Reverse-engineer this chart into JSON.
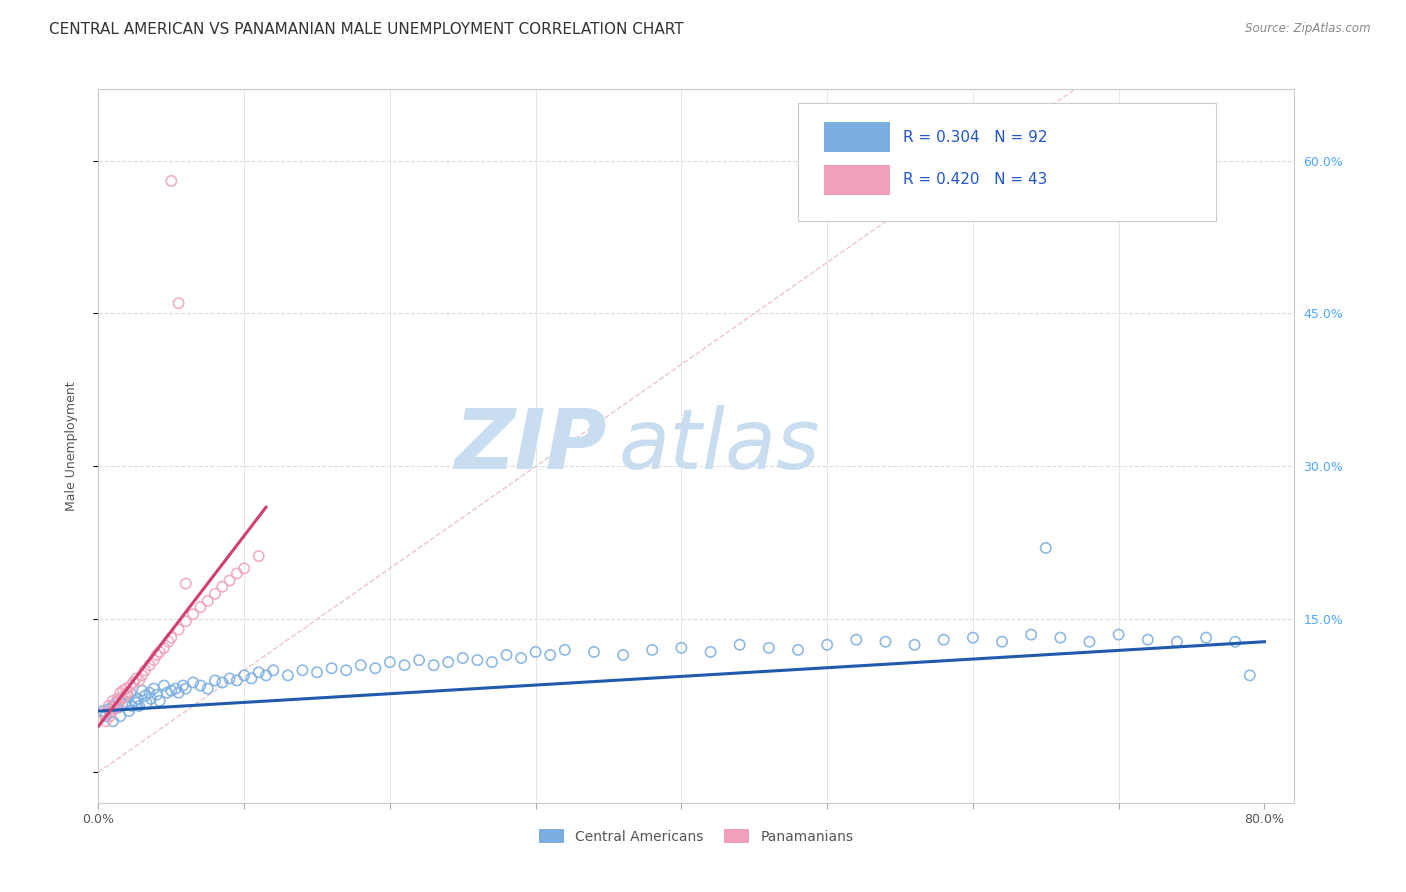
{
  "title": "CENTRAL AMERICAN VS PANAMANIAN MALE UNEMPLOYMENT CORRELATION CHART",
  "source": "Source: ZipAtlas.com",
  "ylabel": "Male Unemployment",
  "xlim": [
    0.0,
    0.82
  ],
  "ylim": [
    -0.03,
    0.67
  ],
  "xticks": [
    0.0,
    0.1,
    0.2,
    0.3,
    0.4,
    0.5,
    0.6,
    0.7,
    0.8
  ],
  "xtick_labels": [
    "0.0%",
    "",
    "",
    "",
    "",
    "",
    "",
    "",
    "80.0%"
  ],
  "ytick_right_values": [
    0.0,
    0.15,
    0.3,
    0.45,
    0.6
  ],
  "ytick_right_labels": [
    "",
    "15.0%",
    "30.0%",
    "45.0%",
    "60.0%"
  ],
  "legend_line1": "R = 0.304   N = 92",
  "legend_line2": "R = 0.420   N = 43",
  "blue_scatter_color": "#7aade0",
  "pink_scatter_color": "#f0a0b8",
  "blue_line_color": "#1f5aad",
  "pink_line_color": "#d04070",
  "diagonal_color": "#e8c0c8",
  "legend_text_color": "#2255cc",
  "watermark_zip_color": "#c8ddf0",
  "watermark_atlas_color": "#c8ddf0",
  "title_fontsize": 11,
  "axis_label_fontsize": 9,
  "tick_fontsize": 9,
  "blue_scatter_x": [
    0.003,
    0.005,
    0.007,
    0.008,
    0.01,
    0.01,
    0.012,
    0.013,
    0.014,
    0.015,
    0.016,
    0.018,
    0.02,
    0.021,
    0.022,
    0.023,
    0.025,
    0.026,
    0.027,
    0.028,
    0.03,
    0.032,
    0.033,
    0.035,
    0.036,
    0.038,
    0.04,
    0.042,
    0.045,
    0.047,
    0.05,
    0.053,
    0.055,
    0.058,
    0.06,
    0.065,
    0.07,
    0.075,
    0.08,
    0.085,
    0.09,
    0.095,
    0.1,
    0.105,
    0.11,
    0.115,
    0.12,
    0.13,
    0.14,
    0.15,
    0.16,
    0.17,
    0.18,
    0.19,
    0.2,
    0.21,
    0.22,
    0.23,
    0.24,
    0.25,
    0.26,
    0.27,
    0.28,
    0.29,
    0.3,
    0.31,
    0.32,
    0.34,
    0.36,
    0.38,
    0.4,
    0.42,
    0.44,
    0.46,
    0.48,
    0.5,
    0.52,
    0.54,
    0.56,
    0.58,
    0.6,
    0.62,
    0.64,
    0.66,
    0.68,
    0.7,
    0.72,
    0.74,
    0.76,
    0.78,
    0.65,
    0.79
  ],
  "blue_scatter_y": [
    0.06,
    0.055,
    0.062,
    0.058,
    0.065,
    0.05,
    0.068,
    0.063,
    0.07,
    0.055,
    0.072,
    0.067,
    0.075,
    0.06,
    0.078,
    0.065,
    0.07,
    0.068,
    0.072,
    0.065,
    0.08,
    0.075,
    0.068,
    0.078,
    0.072,
    0.082,
    0.076,
    0.07,
    0.085,
    0.078,
    0.08,
    0.082,
    0.078,
    0.085,
    0.082,
    0.088,
    0.085,
    0.082,
    0.09,
    0.088,
    0.092,
    0.09,
    0.095,
    0.092,
    0.098,
    0.095,
    0.1,
    0.095,
    0.1,
    0.098,
    0.102,
    0.1,
    0.105,
    0.102,
    0.108,
    0.105,
    0.11,
    0.105,
    0.108,
    0.112,
    0.11,
    0.108,
    0.115,
    0.112,
    0.118,
    0.115,
    0.12,
    0.118,
    0.115,
    0.12,
    0.122,
    0.118,
    0.125,
    0.122,
    0.12,
    0.125,
    0.13,
    0.128,
    0.125,
    0.13,
    0.132,
    0.128,
    0.135,
    0.132,
    0.128,
    0.135,
    0.13,
    0.128,
    0.132,
    0.128,
    0.22,
    0.095
  ],
  "pink_scatter_x": [
    0.003,
    0.005,
    0.007,
    0.008,
    0.009,
    0.01,
    0.011,
    0.012,
    0.013,
    0.014,
    0.015,
    0.016,
    0.017,
    0.018,
    0.019,
    0.02,
    0.022,
    0.024,
    0.026,
    0.028,
    0.03,
    0.032,
    0.035,
    0.038,
    0.04,
    0.042,
    0.045,
    0.048,
    0.05,
    0.055,
    0.06,
    0.065,
    0.07,
    0.075,
    0.08,
    0.085,
    0.09,
    0.095,
    0.1,
    0.11,
    0.05,
    0.055,
    0.06
  ],
  "pink_scatter_y": [
    0.058,
    0.05,
    0.065,
    0.055,
    0.06,
    0.07,
    0.062,
    0.068,
    0.072,
    0.065,
    0.078,
    0.072,
    0.08,
    0.075,
    0.082,
    0.078,
    0.085,
    0.088,
    0.092,
    0.09,
    0.095,
    0.1,
    0.105,
    0.11,
    0.115,
    0.118,
    0.122,
    0.128,
    0.132,
    0.14,
    0.148,
    0.155,
    0.162,
    0.168,
    0.175,
    0.182,
    0.188,
    0.195,
    0.2,
    0.212,
    0.58,
    0.46,
    0.185
  ],
  "blue_trend_x": [
    0.0,
    0.8
  ],
  "blue_trend_y": [
    0.06,
    0.128
  ],
  "pink_trend_x": [
    0.0,
    0.115
  ],
  "pink_trend_y": [
    0.045,
    0.26
  ]
}
